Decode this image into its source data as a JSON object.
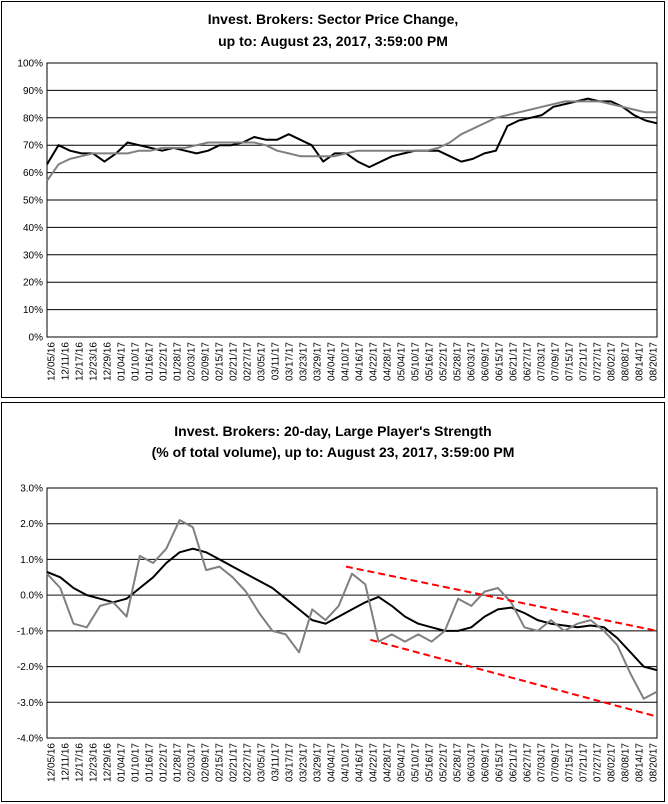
{
  "chart_data": [
    {
      "type": "line",
      "title_line1": "Invest. Brokers: Sector Price Change,",
      "title_line2": "up to: August 23, 2017, 3:59:00 PM",
      "ylim": [
        0,
        100
      ],
      "y_ticks": [
        "0%",
        "10%",
        "20%",
        "30%",
        "40%",
        "50%",
        "60%",
        "70%",
        "80%",
        "90%",
        "100%"
      ],
      "grid": true,
      "x_labels": [
        "12/05/16",
        "12/11/16",
        "12/17/16",
        "12/23/16",
        "12/29/16",
        "01/04/17",
        "01/10/17",
        "01/16/17",
        "01/22/17",
        "01/28/17",
        "02/03/17",
        "02/09/17",
        "02/15/17",
        "02/21/17",
        "02/27/17",
        "03/05/17",
        "03/11/17",
        "03/17/17",
        "03/23/17",
        "03/29/17",
        "04/04/17",
        "04/10/17",
        "04/16/17",
        "04/22/17",
        "04/28/17",
        "05/04/17",
        "05/10/17",
        "05/16/17",
        "05/22/17",
        "05/28/17",
        "06/03/17",
        "06/09/17",
        "06/15/17",
        "06/21/17",
        "06/27/17",
        "07/03/17",
        "07/09/17",
        "07/15/17",
        "07/21/17",
        "07/27/17",
        "08/02/17",
        "08/08/17",
        "08/14/17",
        "08/20/17"
      ],
      "series": [
        {
          "color": "#000000",
          "values": [
            63,
            70,
            68,
            67,
            67,
            64,
            67,
            71,
            70,
            69,
            68,
            69,
            68,
            67,
            68,
            70,
            70,
            71,
            73,
            72,
            72,
            74,
            72,
            70,
            64,
            67,
            67,
            64,
            62,
            64,
            66,
            67,
            68,
            68,
            68,
            66,
            64,
            65,
            67,
            68,
            77,
            79,
            80,
            81,
            84,
            85,
            86,
            87,
            86,
            86,
            84,
            81,
            79,
            78
          ]
        },
        {
          "color": "#808080",
          "values": [
            57,
            63,
            65,
            66,
            67,
            67,
            67,
            67,
            68,
            68,
            69,
            69,
            69,
            70,
            71,
            71,
            71,
            71,
            71,
            70,
            68,
            67,
            66,
            66,
            66,
            66,
            67,
            68,
            68,
            68,
            68,
            68,
            68,
            68,
            69,
            71,
            74,
            76,
            78,
            80,
            81,
            82,
            83,
            84,
            85,
            86,
            86,
            86,
            86,
            85,
            84,
            83,
            82,
            82
          ]
        }
      ]
    },
    {
      "type": "line",
      "title_line1": "Invest. Brokers: 20-day, Large Player's Strength",
      "title_line2": "(% of total volume), up to: August 23, 2017, 3:59:00 PM",
      "ylim": [
        -4.0,
        3.0
      ],
      "y_ticks": [
        "-4.0%",
        "-3.0%",
        "-2.0%",
        "-1.0%",
        "0.0%",
        "1.0%",
        "2.0%",
        "3.0%"
      ],
      "grid": true,
      "zero_line_color": "#ff0000",
      "x_labels": [
        "12/05/16",
        "12/11/16",
        "12/17/16",
        "12/23/16",
        "12/29/16",
        "01/04/17",
        "01/10/17",
        "01/16/17",
        "01/22/17",
        "01/28/17",
        "02/03/17",
        "02/09/17",
        "02/15/17",
        "02/21/17",
        "02/27/17",
        "03/05/17",
        "03/11/17",
        "03/17/17",
        "03/23/17",
        "03/29/17",
        "04/04/17",
        "04/10/17",
        "04/16/17",
        "04/22/17",
        "04/28/17",
        "05/04/17",
        "05/10/17",
        "05/16/17",
        "05/22/17",
        "05/28/17",
        "06/03/17",
        "06/09/17",
        "06/15/17",
        "06/21/17",
        "06/27/17",
        "07/03/17",
        "07/09/17",
        "07/15/17",
        "07/21/17",
        "07/27/17",
        "08/02/17",
        "08/08/17",
        "08/14/17",
        "08/20/17"
      ],
      "series": [
        {
          "color": "#000000",
          "values": [
            0.65,
            0.5,
            0.2,
            0.0,
            -0.1,
            -0.2,
            -0.1,
            0.2,
            0.5,
            0.9,
            1.2,
            1.3,
            1.2,
            1.0,
            0.8,
            0.6,
            0.4,
            0.2,
            -0.1,
            -0.4,
            -0.7,
            -0.8,
            -0.6,
            -0.4,
            -0.2,
            -0.05,
            -0.3,
            -0.6,
            -0.8,
            -0.9,
            -1.0,
            -1.0,
            -0.9,
            -0.6,
            -0.4,
            -0.35,
            -0.5,
            -0.7,
            -0.8,
            -0.85,
            -0.9,
            -0.85,
            -0.9,
            -1.2,
            -1.6,
            -2.0,
            -2.1
          ]
        },
        {
          "color": "#808080",
          "values": [
            0.6,
            0.2,
            -0.8,
            -0.9,
            -0.3,
            -0.2,
            -0.6,
            1.1,
            0.9,
            1.3,
            2.1,
            1.9,
            0.7,
            0.8,
            0.5,
            0.1,
            -0.5,
            -1.0,
            -1.1,
            -1.6,
            -0.4,
            -0.7,
            -0.3,
            0.6,
            0.3,
            -1.3,
            -1.1,
            -1.3,
            -1.1,
            -1.3,
            -1.0,
            -0.1,
            -0.3,
            0.1,
            0.2,
            -0.2,
            -0.9,
            -1.0,
            -0.7,
            -1.0,
            -0.8,
            -0.7,
            -1.0,
            -1.4,
            -2.2,
            -2.9,
            -2.7
          ]
        }
      ],
      "trendlines": [
        {
          "color": "#ff0000",
          "style": "dashed",
          "from": [
            0.49,
            0.8
          ],
          "to": [
            1.0,
            -1.0
          ]
        },
        {
          "color": "#ff0000",
          "style": "dashed",
          "from": [
            0.53,
            -1.25
          ],
          "to": [
            1.0,
            -3.4
          ]
        }
      ]
    }
  ]
}
